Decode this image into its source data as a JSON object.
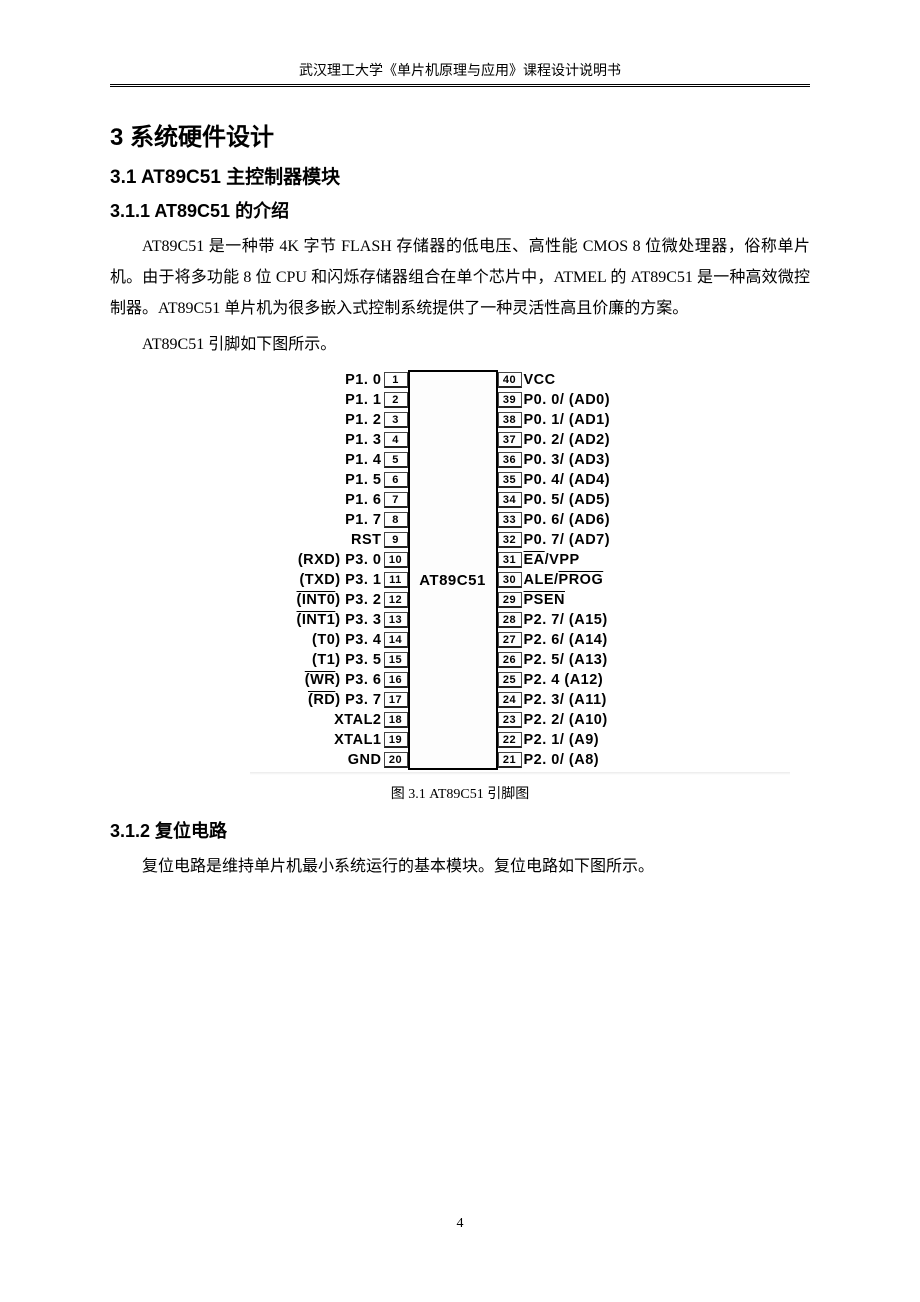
{
  "header": {
    "text": "武汉理工大学《单片机原理与应用》课程设计说明书"
  },
  "section": {
    "h1": "3  系统硬件设计",
    "h2_1": "3.1  AT89C51 主控制器模块",
    "h3_1": "3.1.1  AT89C51 的介绍",
    "para1": "AT89C51 是一种带 4K 字节 FLASH 存储器的低电压、高性能 CMOS 8 位微处理器，俗称单片机。由于将多功能 8 位 CPU 和闪烁存储器组合在单个芯片中，ATMEL 的 AT89C51 是一种高效微控制器。AT89C51 单片机为很多嵌入式控制系统提供了一种灵活性高且价廉的方案。",
    "para2": "AT89C51 引脚如下图所示。",
    "caption": "图 3.1   AT89C51 引脚图",
    "h3_2": "3.1.2  复位电路",
    "para3": "复位电路是维持单片机最小系统运行的基本模块。复位电路如下图所示。"
  },
  "chip": {
    "name": "AT89C51",
    "left_pins": [
      {
        "num": "1",
        "label": "P1. 0",
        "over": ""
      },
      {
        "num": "2",
        "label": "P1. 1",
        "over": ""
      },
      {
        "num": "3",
        "label": "P1. 2",
        "over": ""
      },
      {
        "num": "4",
        "label": "P1. 3",
        "over": ""
      },
      {
        "num": "5",
        "label": "P1. 4",
        "over": ""
      },
      {
        "num": "6",
        "label": "P1. 5",
        "over": ""
      },
      {
        "num": "7",
        "label": "P1. 6",
        "over": ""
      },
      {
        "num": "8",
        "label": "P1. 7",
        "over": ""
      },
      {
        "num": "9",
        "label": "RST",
        "over": ""
      },
      {
        "num": "10",
        "label": "(RXD) P3. 0",
        "over": ""
      },
      {
        "num": "11",
        "label": "(TXD) P3. 1",
        "over": ""
      },
      {
        "num": "12",
        "label": ") P3. 2",
        "over": "(INT0"
      },
      {
        "num": "13",
        "label": ") P3. 3",
        "over": "(INT1"
      },
      {
        "num": "14",
        "label": "(T0) P3. 4",
        "over": ""
      },
      {
        "num": "15",
        "label": "(T1) P3. 5",
        "over": ""
      },
      {
        "num": "16",
        "label": ") P3. 6",
        "over": "(WR"
      },
      {
        "num": "17",
        "label": ") P3. 7",
        "over": "(RD"
      },
      {
        "num": "18",
        "label": "XTAL2",
        "over": ""
      },
      {
        "num": "19",
        "label": "XTAL1",
        "over": ""
      },
      {
        "num": "20",
        "label": "GND",
        "over": ""
      }
    ],
    "right_pins": [
      {
        "num": "40",
        "label": "VCC",
        "over": ""
      },
      {
        "num": "39",
        "label": "P0. 0/ (AD0)",
        "over": ""
      },
      {
        "num": "38",
        "label": "P0. 1/ (AD1)",
        "over": ""
      },
      {
        "num": "37",
        "label": "P0. 2/ (AD2)",
        "over": ""
      },
      {
        "num": "36",
        "label": "P0. 3/ (AD3)",
        "over": ""
      },
      {
        "num": "35",
        "label": "P0. 4/ (AD4)",
        "over": ""
      },
      {
        "num": "34",
        "label": "P0. 5/ (AD5)",
        "over": ""
      },
      {
        "num": "33",
        "label": "P0. 6/ (AD6)",
        "over": ""
      },
      {
        "num": "32",
        "label": "P0. 7/ (AD7)",
        "over": ""
      },
      {
        "num": "31",
        "label": "/VPP",
        "over": "EA"
      },
      {
        "num": "30",
        "label": "ALE/",
        "over2": "PROG"
      },
      {
        "num": "29",
        "label": "",
        "over": "PSEN"
      },
      {
        "num": "28",
        "label": "P2. 7/ (A15)",
        "over": ""
      },
      {
        "num": "27",
        "label": "P2. 6/ (A14)",
        "over": ""
      },
      {
        "num": "26",
        "label": "P2. 5/ (A13)",
        "over": ""
      },
      {
        "num": "25",
        "label": "P2. 4 (A12)",
        "over": ""
      },
      {
        "num": "24",
        "label": "P2. 3/ (A11)",
        "over": ""
      },
      {
        "num": "23",
        "label": "P2. 2/ (A10)",
        "over": ""
      },
      {
        "num": "22",
        "label": "P2. 1/ (A9)",
        "over": ""
      },
      {
        "num": "21",
        "label": "P2. 0/ (A8)",
        "over": ""
      }
    ]
  },
  "page_number": "4"
}
